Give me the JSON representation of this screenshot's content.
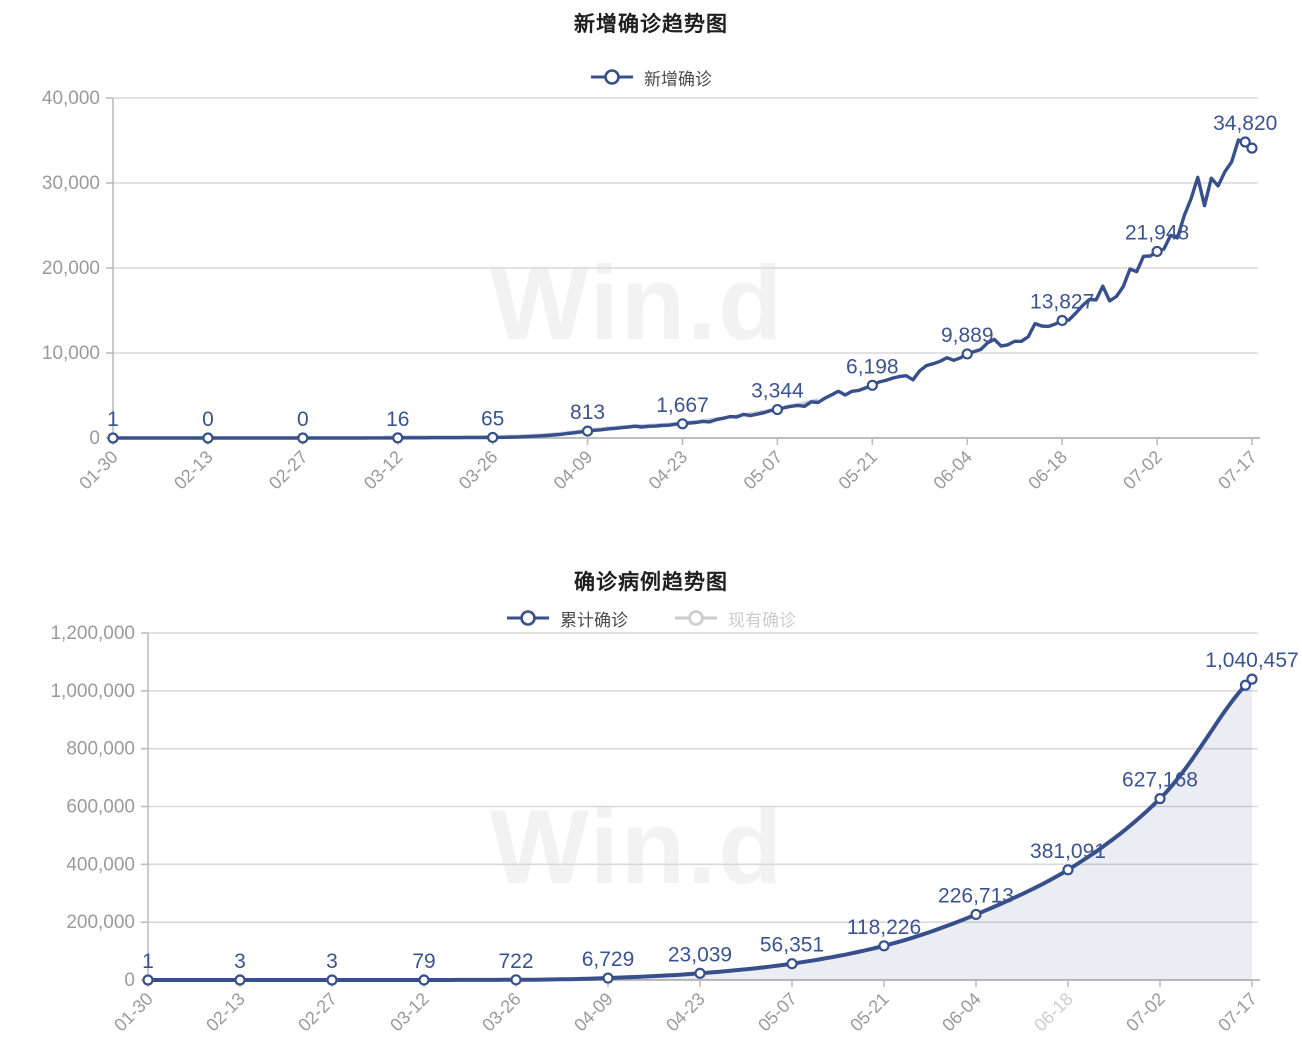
{
  "watermark": "Win.d",
  "colors": {
    "line": "#37508c",
    "label": "#3a5391",
    "grid": "#d9d9d9",
    "axis": "#bdbdbd",
    "tick_text": "#9a9a9a",
    "inactive": "#cccccc",
    "legend_text": "#4a4a4a",
    "title": "#1f1f1f",
    "area_fill": "rgba(62,78,140,0.10)",
    "watermark_color": "#f2f2f2"
  },
  "chart_data": [
    {
      "type": "line",
      "title": "新增确诊趋势图",
      "legend": [
        {
          "label": "新增确诊",
          "active": true
        }
      ],
      "legend_position": "top",
      "categories": [
        "01-30",
        "02-13",
        "02-27",
        "03-12",
        "03-26",
        "04-09",
        "04-23",
        "05-07",
        "05-21",
        "06-04",
        "06-18",
        "07-02",
        "07-17"
      ],
      "series": [
        {
          "name": "新增确诊",
          "visible": true,
          "values": [
            1,
            0,
            0,
            16,
            65,
            813,
            1667,
            3344,
            6198,
            9889,
            13827,
            21948,
            34820
          ]
        }
      ],
      "ylim": [
        0,
        40000
      ],
      "yticks": [
        0,
        10000,
        20000,
        30000,
        40000
      ],
      "grid": true,
      "x_label_rotation": 45
    },
    {
      "type": "line",
      "title": "确诊病例趋势图",
      "legend": [
        {
          "label": "累计确诊",
          "active": true
        },
        {
          "label": "现有确诊",
          "active": false
        }
      ],
      "legend_position": "top",
      "categories": [
        "01-30",
        "02-13",
        "02-27",
        "03-12",
        "03-26",
        "04-09",
        "04-23",
        "05-07",
        "05-21",
        "06-04",
        "06-18",
        "07-02",
        "07-17"
      ],
      "series": [
        {
          "name": "累计确诊",
          "visible": true,
          "values": [
            1,
            3,
            3,
            79,
            722,
            6729,
            23039,
            56351,
            118226,
            226713,
            381091,
            627168,
            1040457
          ]
        },
        {
          "name": "现有确诊",
          "visible": false,
          "values": []
        }
      ],
      "ylim": [
        0,
        1200000
      ],
      "yticks": [
        0,
        200000,
        400000,
        600000,
        800000,
        1000000,
        1200000
      ],
      "grid": true,
      "x_label_rotation": 45
    }
  ]
}
